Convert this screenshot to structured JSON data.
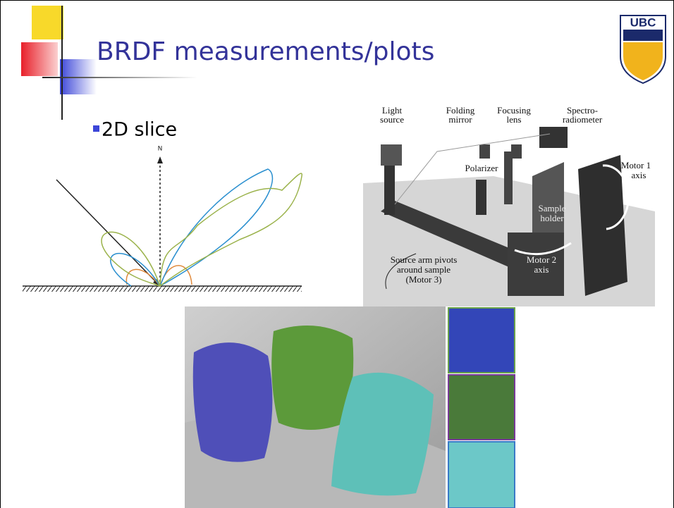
{
  "slide": {
    "title": "BRDF measurements/plots",
    "logo": "UBC",
    "bullet": "2D slice"
  },
  "lobe_diagram": {
    "normal_label": "N"
  },
  "apparatus": {
    "labels": {
      "light_source": [
        "Light",
        "source"
      ],
      "folding_mirror": [
        "Folding",
        "mirror"
      ],
      "focusing_lens": [
        "Focusing",
        "lens"
      ],
      "spectroradiometer": [
        "Spectro-",
        "radiometer"
      ],
      "polarizer": [
        "Polarizer"
      ],
      "motor1": [
        "Motor 1",
        "axis"
      ],
      "sample_holder": [
        "Sample",
        "holder"
      ],
      "motor2": [
        "Motor 2",
        "axis"
      ],
      "source_arm": [
        "Source arm pivots",
        "around sample",
        "(Motor 3)"
      ]
    }
  }
}
